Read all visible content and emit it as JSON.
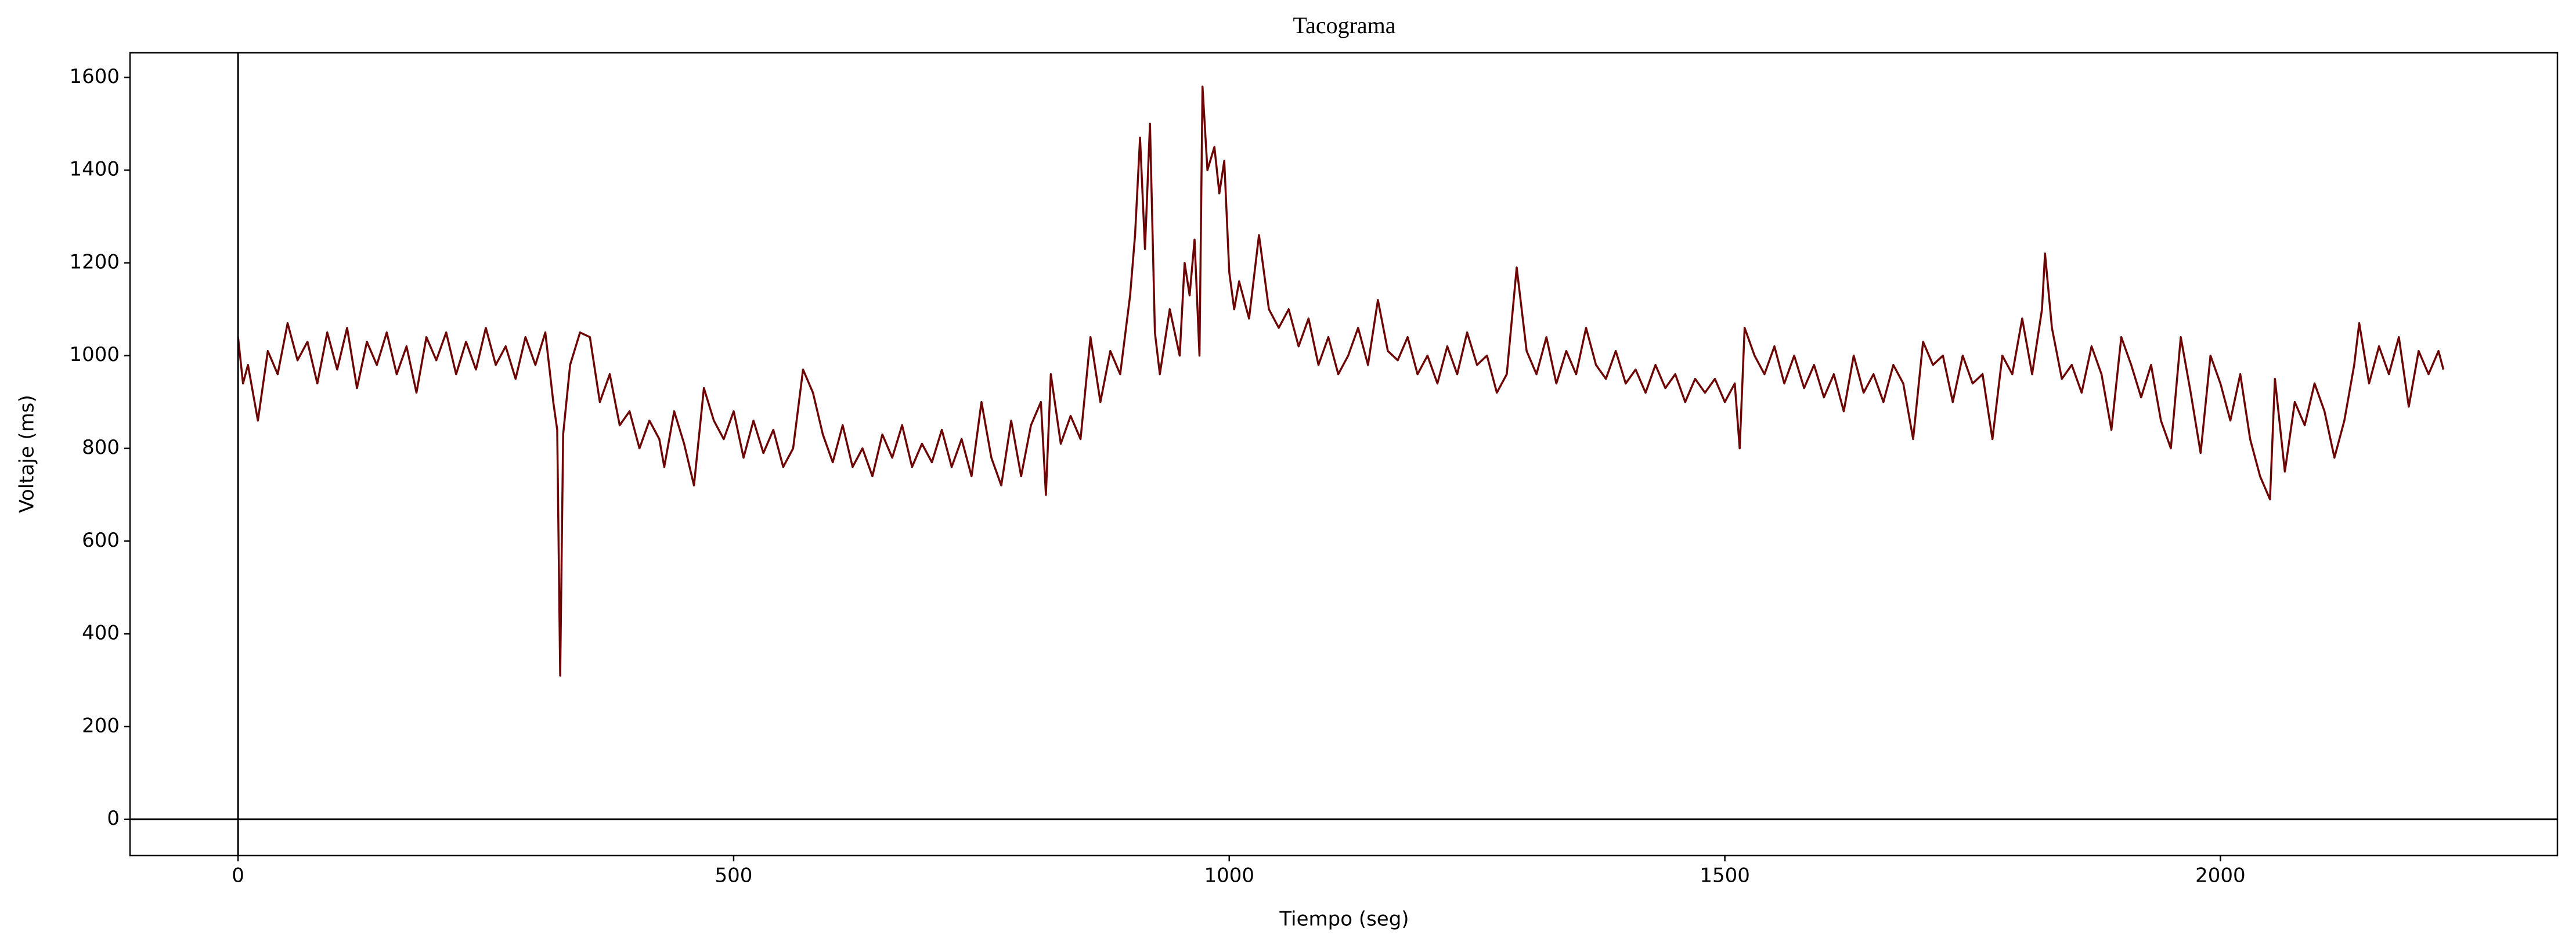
{
  "chart_data": {
    "type": "line",
    "title": "Tacograma",
    "xlabel": "Tiempo (seg)",
    "ylabel": "Voltaje (ms)",
    "color": "#6e0505",
    "axhline": 0,
    "axvline": 0,
    "xlim": [
      -109,
      2340
    ],
    "ylim": [
      -78,
      1653
    ],
    "xticks": [
      0,
      500,
      1000,
      1500,
      2000
    ],
    "yticks": [
      0,
      200,
      400,
      600,
      800,
      1000,
      1200,
      1400,
      1600
    ],
    "x": [
      0,
      5,
      10,
      20,
      30,
      40,
      50,
      60,
      70,
      80,
      90,
      100,
      110,
      120,
      130,
      140,
      150,
      160,
      170,
      180,
      190,
      200,
      210,
      220,
      230,
      240,
      250,
      260,
      270,
      280,
      290,
      300,
      310,
      318,
      322,
      325,
      328,
      335,
      345,
      355,
      365,
      375,
      385,
      395,
      405,
      415,
      425,
      430,
      440,
      450,
      460,
      470,
      480,
      490,
      500,
      510,
      520,
      530,
      540,
      550,
      560,
      570,
      580,
      590,
      600,
      610,
      620,
      630,
      640,
      650,
      660,
      670,
      680,
      690,
      700,
      710,
      720,
      730,
      740,
      750,
      760,
      770,
      780,
      790,
      800,
      810,
      815,
      820,
      830,
      840,
      850,
      860,
      870,
      880,
      890,
      900,
      905,
      910,
      915,
      920,
      925,
      930,
      940,
      950,
      955,
      960,
      965,
      970,
      973,
      978,
      985,
      990,
      995,
      1000,
      1005,
      1010,
      1020,
      1030,
      1040,
      1050,
      1060,
      1070,
      1080,
      1090,
      1100,
      1110,
      1120,
      1130,
      1140,
      1150,
      1160,
      1170,
      1180,
      1190,
      1200,
      1210,
      1220,
      1230,
      1240,
      1250,
      1260,
      1270,
      1280,
      1290,
      1300,
      1310,
      1320,
      1330,
      1340,
      1350,
      1360,
      1370,
      1380,
      1390,
      1400,
      1410,
      1420,
      1430,
      1440,
      1450,
      1460,
      1470,
      1480,
      1490,
      1500,
      1510,
      1515,
      1520,
      1530,
      1540,
      1550,
      1560,
      1570,
      1580,
      1590,
      1600,
      1610,
      1620,
      1630,
      1640,
      1650,
      1660,
      1670,
      1680,
      1690,
      1700,
      1710,
      1720,
      1730,
      1740,
      1750,
      1760,
      1770,
      1780,
      1790,
      1800,
      1810,
      1820,
      1823,
      1830,
      1840,
      1850,
      1860,
      1870,
      1880,
      1890,
      1900,
      1910,
      1920,
      1930,
      1940,
      1950,
      1960,
      1970,
      1980,
      1990,
      2000,
      2010,
      2020,
      2030,
      2040,
      2050,
      2055,
      2065,
      2075,
      2085,
      2095,
      2105,
      2115,
      2125,
      2135,
      2140,
      2150,
      2160,
      2170,
      2180,
      2190,
      2200,
      2210,
      2220,
      2225
    ],
    "values": [
      1040,
      940,
      980,
      860,
      1010,
      960,
      1070,
      990,
      1030,
      940,
      1050,
      970,
      1060,
      930,
      1030,
      980,
      1050,
      960,
      1020,
      920,
      1040,
      990,
      1050,
      960,
      1030,
      970,
      1060,
      980,
      1020,
      950,
      1040,
      980,
      1050,
      900,
      840,
      310,
      830,
      980,
      1050,
      1040,
      900,
      960,
      850,
      880,
      800,
      860,
      820,
      760,
      880,
      810,
      720,
      930,
      860,
      820,
      880,
      780,
      860,
      790,
      840,
      760,
      800,
      970,
      920,
      830,
      770,
      850,
      760,
      800,
      740,
      830,
      780,
      850,
      760,
      810,
      770,
      840,
      760,
      820,
      740,
      900,
      780,
      720,
      860,
      740,
      850,
      900,
      700,
      960,
      810,
      870,
      820,
      1040,
      900,
      1010,
      960,
      1130,
      1260,
      1470,
      1230,
      1500,
      1050,
      960,
      1100,
      1000,
      1200,
      1130,
      1250,
      1000,
      1580,
      1400,
      1450,
      1350,
      1420,
      1180,
      1100,
      1160,
      1080,
      1260,
      1100,
      1060,
      1100,
      1020,
      1080,
      980,
      1040,
      960,
      1000,
      1060,
      980,
      1120,
      1010,
      990,
      1040,
      960,
      1000,
      940,
      1020,
      960,
      1050,
      980,
      1000,
      920,
      960,
      1190,
      1010,
      960,
      1040,
      940,
      1010,
      960,
      1060,
      980,
      950,
      1010,
      940,
      970,
      920,
      980,
      930,
      960,
      900,
      950,
      920,
      950,
      900,
      940,
      800,
      1060,
      1000,
      960,
      1020,
      940,
      1000,
      930,
      980,
      910,
      960,
      880,
      1000,
      920,
      960,
      900,
      980,
      940,
      820,
      1030,
      980,
      1000,
      900,
      1000,
      940,
      960,
      820,
      1000,
      960,
      1080,
      960,
      1100,
      1220,
      1060,
      950,
      980,
      920,
      1020,
      960,
      840,
      1040,
      980,
      910,
      980,
      860,
      800,
      1040,
      920,
      790,
      1000,
      940,
      860,
      960,
      820,
      740,
      690,
      950,
      750,
      900,
      850,
      940,
      880,
      780,
      860,
      980,
      1070,
      940,
      1020,
      960,
      1040,
      890,
      1010,
      960,
      1010,
      970
    ]
  }
}
